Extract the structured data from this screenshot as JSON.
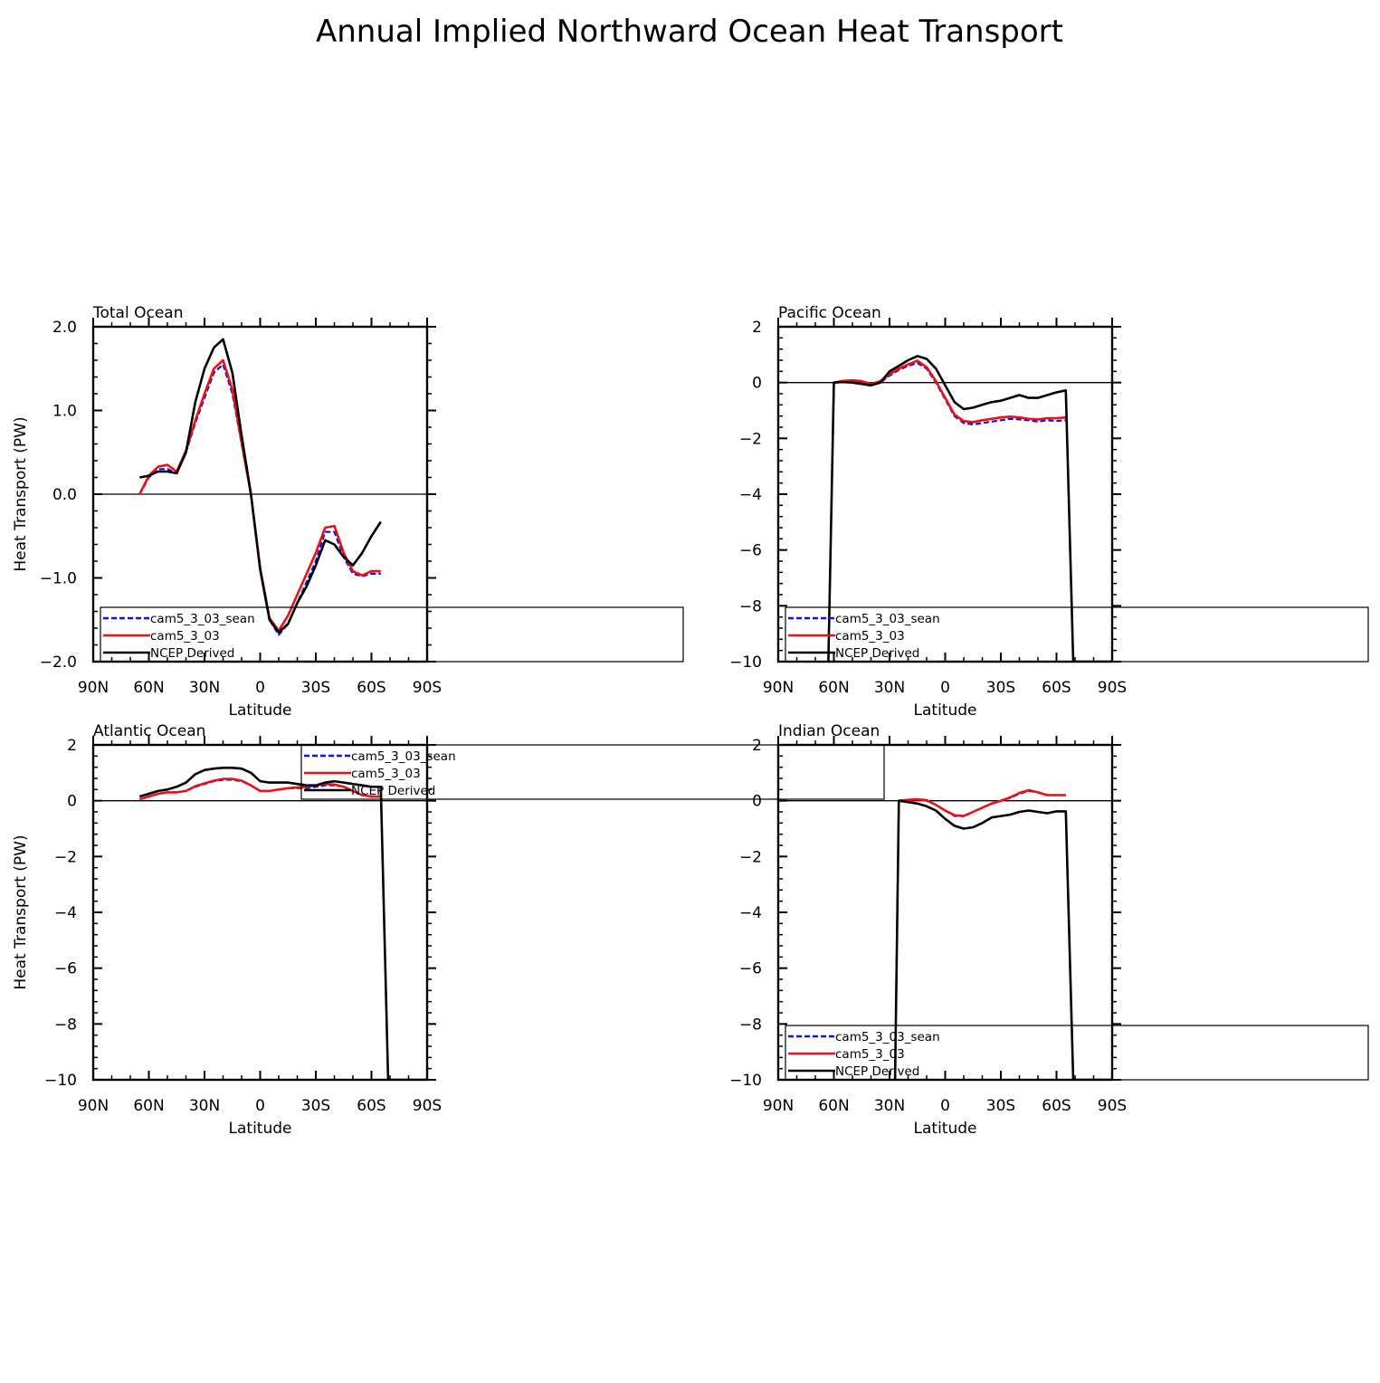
{
  "title": "Annual Implied Northward Ocean Heat Transport",
  "colors": {
    "cam5_3_03_sean": "#1010ee",
    "cam5_3_03": "#ee1010",
    "NCEP Derived": "#000000"
  },
  "chart_data": [
    {
      "type": "line",
      "panel_title": "Total Ocean",
      "xlabel": "Latitude",
      "ylabel": "Heat Transport (PW)",
      "x_direction": "90N on left to 90S on right (x given as latitude, north positive)",
      "xlim": [
        90,
        -90
      ],
      "xticks": [
        90,
        60,
        30,
        0,
        -30,
        -60,
        -90
      ],
      "xticklabels": [
        "90N",
        "60N",
        "30N",
        "0",
        "30S",
        "60S",
        "90S"
      ],
      "ylim": [
        -2.0,
        2.0
      ],
      "yticks": [
        2.0,
        1.0,
        0.0,
        -1.0,
        -2.0
      ],
      "yticklabels": [
        "2.0",
        "1.0",
        "0.0",
        "−1.0",
        "−2.0"
      ],
      "zero_line": true,
      "legend_entries": [
        "cam5_3_03_sean",
        "cam5_3_03",
        "NCEP Derived"
      ],
      "series": [
        {
          "name": "cam5_3_03_sean",
          "style": "dashed",
          "x": [
            65,
            60,
            55,
            50,
            45,
            40,
            35,
            30,
            25,
            20,
            15,
            10,
            5,
            0,
            -5,
            -10,
            -15,
            -20,
            -25,
            -30,
            -35,
            -40,
            -45,
            -50,
            -55,
            -60,
            -65
          ],
          "y": [
            0.0,
            0.2,
            0.3,
            0.3,
            0.25,
            0.5,
            0.85,
            1.15,
            1.45,
            1.55,
            1.2,
            0.6,
            0.0,
            -0.9,
            -1.5,
            -1.68,
            -1.55,
            -1.3,
            -1.05,
            -0.8,
            -0.45,
            -0.45,
            -0.75,
            -0.95,
            -0.98,
            -0.95,
            -0.95
          ]
        },
        {
          "name": "cam5_3_03",
          "style": "solid",
          "x": [
            65,
            60,
            55,
            50,
            45,
            40,
            35,
            30,
            25,
            20,
            15,
            10,
            5,
            0,
            -5,
            -10,
            -15,
            -20,
            -25,
            -30,
            -35,
            -40,
            -45,
            -50,
            -55,
            -60,
            -65
          ],
          "y": [
            0.0,
            0.22,
            0.33,
            0.35,
            0.27,
            0.52,
            0.88,
            1.2,
            1.5,
            1.6,
            1.25,
            0.62,
            0.0,
            -0.88,
            -1.48,
            -1.63,
            -1.45,
            -1.2,
            -0.95,
            -0.7,
            -0.4,
            -0.38,
            -0.7,
            -0.92,
            -0.97,
            -0.92,
            -0.92
          ]
        },
        {
          "name": "NCEP Derived",
          "style": "solid",
          "x": [
            65,
            60,
            55,
            50,
            45,
            40,
            35,
            30,
            25,
            20,
            15,
            10,
            5,
            0,
            -5,
            -10,
            -15,
            -20,
            -25,
            -30,
            -35,
            -40,
            -45,
            -50,
            -55,
            -60,
            -65
          ],
          "y": [
            0.2,
            0.22,
            0.27,
            0.27,
            0.25,
            0.5,
            1.1,
            1.5,
            1.75,
            1.85,
            1.45,
            0.7,
            0.0,
            -0.9,
            -1.5,
            -1.65,
            -1.55,
            -1.3,
            -1.1,
            -0.85,
            -0.55,
            -0.6,
            -0.75,
            -0.85,
            -0.7,
            -0.5,
            -0.33
          ]
        }
      ]
    },
    {
      "type": "line",
      "panel_title": "Pacific Ocean",
      "xlabel": "Latitude",
      "ylabel": "",
      "xlim": [
        90,
        -90
      ],
      "xticks": [
        90,
        60,
        30,
        0,
        -30,
        -60,
        -90
      ],
      "xticklabels": [
        "90N",
        "60N",
        "30N",
        "0",
        "30S",
        "60S",
        "90S"
      ],
      "ylim": [
        -10,
        2
      ],
      "yticks": [
        2,
        0,
        -2,
        -4,
        -6,
        -8,
        -10
      ],
      "yticklabels": [
        "2",
        "0",
        "−2",
        "−4",
        "−6",
        "−8",
        "−10"
      ],
      "zero_line": true,
      "legend_entries": [
        "cam5_3_03_sean",
        "cam5_3_03",
        "NCEP Derived"
      ],
      "series": [
        {
          "name": "cam5_3_03_sean",
          "style": "dashed",
          "x": [
            60,
            55,
            50,
            45,
            40,
            35,
            30,
            25,
            20,
            15,
            10,
            5,
            0,
            -5,
            -10,
            -15,
            -20,
            -25,
            -30,
            -35,
            -40,
            -45,
            -50,
            -55,
            -60,
            -65
          ],
          "y": [
            0.0,
            0.05,
            0.05,
            0.0,
            -0.1,
            0.0,
            0.25,
            0.45,
            0.6,
            0.7,
            0.5,
            0.0,
            -0.6,
            -1.2,
            -1.45,
            -1.5,
            -1.45,
            -1.4,
            -1.35,
            -1.3,
            -1.32,
            -1.35,
            -1.4,
            -1.35,
            -1.38,
            -1.35
          ]
        },
        {
          "name": "cam5_3_03",
          "style": "solid",
          "x": [
            60,
            55,
            50,
            45,
            40,
            35,
            30,
            25,
            20,
            15,
            10,
            5,
            0,
            -5,
            -10,
            -15,
            -20,
            -25,
            -30,
            -35,
            -40,
            -45,
            -50,
            -55,
            -60,
            -65
          ],
          "y": [
            0.0,
            0.06,
            0.08,
            0.05,
            -0.05,
            0.05,
            0.3,
            0.5,
            0.65,
            0.78,
            0.55,
            0.05,
            -0.55,
            -1.15,
            -1.38,
            -1.42,
            -1.35,
            -1.3,
            -1.25,
            -1.22,
            -1.25,
            -1.3,
            -1.32,
            -1.28,
            -1.28,
            -1.25
          ]
        },
        {
          "name": "NCEP Derived",
          "style": "solid",
          "x": [
            63,
            60,
            55,
            50,
            45,
            40,
            35,
            30,
            25,
            20,
            15,
            10,
            5,
            0,
            -5,
            -10,
            -15,
            -20,
            -25,
            -30,
            -35,
            -40,
            -45,
            -50,
            -55,
            -60,
            -65,
            -69,
            -90
          ],
          "y": [
            -10,
            0.0,
            0.02,
            0.0,
            -0.05,
            -0.1,
            0.0,
            0.4,
            0.6,
            0.8,
            0.95,
            0.85,
            0.5,
            -0.1,
            -0.7,
            -0.95,
            -0.9,
            -0.8,
            -0.7,
            -0.65,
            -0.55,
            -0.45,
            -0.55,
            -0.55,
            -0.45,
            -0.35,
            -0.28,
            -10,
            -10
          ]
        }
      ]
    },
    {
      "type": "line",
      "panel_title": "Atlantic Ocean",
      "xlabel": "Latitude",
      "ylabel": "Heat Transport (PW)",
      "xlim": [
        90,
        -90
      ],
      "xticks": [
        90,
        60,
        30,
        0,
        -30,
        -60,
        -90
      ],
      "xticklabels": [
        "90N",
        "60N",
        "30N",
        "0",
        "30S",
        "60S",
        "90S"
      ],
      "ylim": [
        -10,
        2
      ],
      "yticks": [
        2,
        0,
        -2,
        -4,
        -6,
        -8,
        -10
      ],
      "yticklabels": [
        "2",
        "0",
        "−2",
        "−4",
        "−6",
        "−8",
        "−10"
      ],
      "zero_line": true,
      "legend_entries": [
        "cam5_3_03_sean",
        "cam5_3_03",
        "NCEP Derived"
      ],
      "series": [
        {
          "name": "cam5_3_03_sean",
          "style": "dashed",
          "x": [
            65,
            60,
            55,
            50,
            45,
            40,
            35,
            30,
            25,
            20,
            15,
            10,
            5,
            0,
            -5,
            -10,
            -15,
            -20,
            -25,
            -30,
            -35,
            -40,
            -45,
            -50,
            -55,
            -60,
            -65
          ],
          "y": [
            0.05,
            0.15,
            0.25,
            0.3,
            0.3,
            0.35,
            0.5,
            0.6,
            0.7,
            0.75,
            0.75,
            0.7,
            0.55,
            0.35,
            0.35,
            0.4,
            0.45,
            0.45,
            0.45,
            0.5,
            0.55,
            0.55,
            0.5,
            0.35,
            0.2,
            0.15,
            0.15
          ]
        },
        {
          "name": "cam5_3_03",
          "style": "solid",
          "x": [
            65,
            60,
            55,
            50,
            45,
            40,
            35,
            30,
            25,
            20,
            15,
            10,
            5,
            0,
            -5,
            -10,
            -15,
            -20,
            -25,
            -30,
            -35,
            -40,
            -45,
            -50,
            -55,
            -60,
            -65
          ],
          "y": [
            0.05,
            0.15,
            0.25,
            0.3,
            0.3,
            0.35,
            0.52,
            0.62,
            0.72,
            0.78,
            0.78,
            0.72,
            0.55,
            0.35,
            0.35,
            0.4,
            0.45,
            0.48,
            0.5,
            0.55,
            0.6,
            0.58,
            0.5,
            0.35,
            0.2,
            0.15,
            0.15
          ]
        },
        {
          "name": "NCEP Derived",
          "style": "solid",
          "x": [
            65,
            60,
            55,
            50,
            45,
            40,
            35,
            30,
            25,
            20,
            15,
            10,
            5,
            0,
            -5,
            -10,
            -15,
            -20,
            -25,
            -30,
            -35,
            -40,
            -45,
            -50,
            -55,
            -60,
            -65,
            -69,
            -90
          ],
          "y": [
            0.15,
            0.25,
            0.35,
            0.4,
            0.5,
            0.65,
            0.95,
            1.1,
            1.15,
            1.18,
            1.18,
            1.15,
            1.0,
            0.7,
            0.65,
            0.65,
            0.65,
            0.6,
            0.55,
            0.55,
            0.65,
            0.7,
            0.65,
            0.6,
            0.55,
            0.5,
            0.5,
            -10,
            -10
          ]
        }
      ]
    },
    {
      "type": "line",
      "panel_title": "Indian Ocean",
      "xlabel": "Latitude",
      "ylabel": "",
      "xlim": [
        90,
        -90
      ],
      "xticks": [
        90,
        60,
        30,
        0,
        -30,
        -60,
        -90
      ],
      "xticklabels": [
        "90N",
        "60N",
        "30N",
        "0",
        "30S",
        "60S",
        "90S"
      ],
      "ylim": [
        -10,
        2
      ],
      "yticks": [
        2,
        0,
        -2,
        -4,
        -6,
        -8,
        -10
      ],
      "yticklabels": [
        "2",
        "0",
        "−2",
        "−4",
        "−6",
        "−8",
        "−10"
      ],
      "zero_line": true,
      "legend_entries": [
        "cam5_3_03_sean",
        "cam5_3_03",
        "NCEP Derived"
      ],
      "series": [
        {
          "name": "cam5_3_03_sean",
          "style": "dashed",
          "x": [
            25,
            20,
            15,
            10,
            5,
            0,
            -5,
            -10,
            -15,
            -20,
            -25,
            -30,
            -35,
            -40,
            -45,
            -50,
            -55,
            -60,
            -65
          ],
          "y": [
            0.0,
            0.03,
            0.05,
            0.0,
            -0.15,
            -0.35,
            -0.55,
            -0.55,
            -0.4,
            -0.25,
            -0.1,
            0.0,
            0.1,
            0.25,
            0.35,
            0.3,
            0.2,
            0.2,
            0.2
          ]
        },
        {
          "name": "cam5_3_03",
          "style": "solid",
          "x": [
            25,
            20,
            15,
            10,
            5,
            0,
            -5,
            -10,
            -15,
            -20,
            -25,
            -30,
            -35,
            -40,
            -45,
            -50,
            -55,
            -60,
            -65
          ],
          "y": [
            0.0,
            0.03,
            0.05,
            0.02,
            -0.15,
            -0.35,
            -0.52,
            -0.55,
            -0.4,
            -0.25,
            -0.1,
            0.0,
            0.12,
            0.28,
            0.38,
            0.3,
            0.2,
            0.2,
            0.2
          ]
        },
        {
          "name": "NCEP Derived",
          "style": "solid",
          "x": [
            27,
            25,
            20,
            15,
            10,
            5,
            0,
            -5,
            -10,
            -15,
            -20,
            -25,
            -30,
            -35,
            -40,
            -45,
            -50,
            -55,
            -60,
            -65,
            -69,
            -90
          ],
          "y": [
            -10,
            0.0,
            -0.05,
            -0.1,
            -0.2,
            -0.35,
            -0.65,
            -0.9,
            -1.0,
            -0.95,
            -0.8,
            -0.6,
            -0.55,
            -0.5,
            -0.4,
            -0.35,
            -0.4,
            -0.45,
            -0.38,
            -0.38,
            -10,
            -10
          ]
        }
      ]
    }
  ]
}
